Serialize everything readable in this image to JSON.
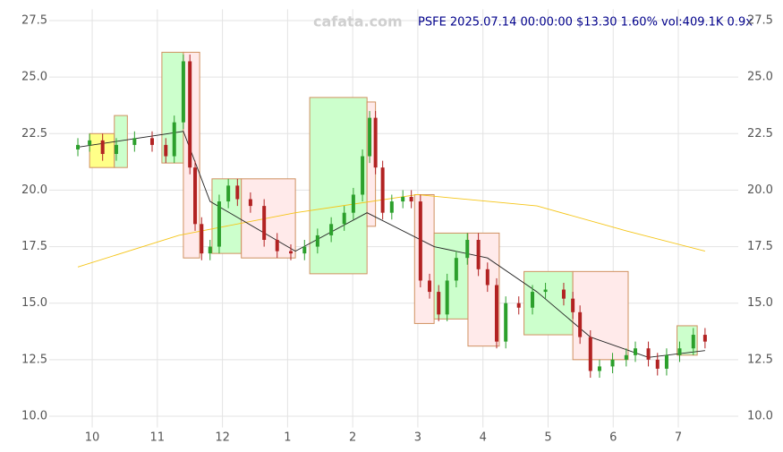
{
  "chart_data": {
    "type": "candlestick",
    "title": "PSFE 2025.07.14 00:00:00 $13.30 1.60% vol:409.1K 0.9x",
    "watermark": "cafata.com",
    "xlim": [
      -0.66,
      9.92
    ],
    "ylim": [
      9.5,
      28.0
    ],
    "grid": true,
    "xticks": [
      {
        "value": 0,
        "label": "10"
      },
      {
        "value": 1,
        "label": "11"
      },
      {
        "value": 2,
        "label": "12"
      },
      {
        "value": 3,
        "label": "1"
      },
      {
        "value": 4,
        "label": "2"
      },
      {
        "value": 5,
        "label": "3"
      },
      {
        "value": 6,
        "label": "4"
      },
      {
        "value": 7,
        "label": "5"
      },
      {
        "value": 8,
        "label": "6"
      },
      {
        "value": 9,
        "label": "7"
      }
    ],
    "yticks": [
      {
        "value": 10,
        "label": "10.0"
      },
      12.5,
      {
        "value": 15,
        "label": "15.0"
      },
      17.5,
      {
        "value": 20,
        "label": "20.0"
      },
      22.5,
      {
        "value": 25,
        "label": "25.0"
      },
      27.5
    ],
    "x": [
      -0.22,
      -0.04,
      0.16,
      0.37,
      0.65,
      0.92,
      1.13,
      1.26,
      1.4,
      1.5,
      1.58,
      1.68,
      1.81,
      1.95,
      2.09,
      2.23,
      2.43,
      2.64,
      2.84,
      3.05,
      3.26,
      3.46,
      3.67,
      3.87,
      4.01,
      4.15,
      4.26,
      4.35,
      4.46,
      4.6,
      4.77,
      4.9,
      5.04,
      5.18,
      5.32,
      5.45,
      5.59,
      5.76,
      5.93,
      6.07,
      6.21,
      6.35,
      6.55,
      6.76,
      6.96,
      7.24,
      7.38,
      7.49,
      7.65,
      7.79,
      7.99,
      8.2,
      8.34,
      8.54,
      8.68,
      8.82,
      9.02,
      9.23,
      9.41
    ],
    "open": [
      21.8,
      22.0,
      22.2,
      21.6,
      22.0,
      22.3,
      22.0,
      21.5,
      23.0,
      25.7,
      21.0,
      18.5,
      17.2,
      17.5,
      19.5,
      20.2,
      19.6,
      19.3,
      17.8,
      17.3,
      17.2,
      17.5,
      18.0,
      18.5,
      19.0,
      19.8,
      21.5,
      23.2,
      21.0,
      19.0,
      19.5,
      19.7,
      19.5,
      16.0,
      15.5,
      14.5,
      16.0,
      17.0,
      17.8,
      16.5,
      15.8,
      13.3,
      15.0,
      14.8,
      15.5,
      15.6,
      15.2,
      14.6,
      13.5,
      12.0,
      12.2,
      12.5,
      12.7,
      13.0,
      12.5,
      12.1,
      12.7,
      13.0,
      13.6
    ],
    "high": [
      22.3,
      22.5,
      22.5,
      22.3,
      22.6,
      22.6,
      22.3,
      23.3,
      26.0,
      26.0,
      21.3,
      18.8,
      17.8,
      19.8,
      20.5,
      20.5,
      19.9,
      19.6,
      18.1,
      17.6,
      17.8,
      18.3,
      18.8,
      19.3,
      20.1,
      21.8,
      23.5,
      23.5,
      21.3,
      19.8,
      20.0,
      20.0,
      19.8,
      16.3,
      15.8,
      16.3,
      17.3,
      18.1,
      18.1,
      16.8,
      16.1,
      15.3,
      15.3,
      15.8,
      15.9,
      15.9,
      15.5,
      14.9,
      13.8,
      12.5,
      12.8,
      13.0,
      13.3,
      13.3,
      12.8,
      13.0,
      13.3,
      13.9,
      13.9
    ],
    "low": [
      21.5,
      21.7,
      21.3,
      21.3,
      21.7,
      21.7,
      21.2,
      21.2,
      22.7,
      20.7,
      18.2,
      16.9,
      16.9,
      17.2,
      19.2,
      19.3,
      19.0,
      17.5,
      17.0,
      16.9,
      16.9,
      17.2,
      17.7,
      18.2,
      18.7,
      19.5,
      21.2,
      20.7,
      18.7,
      18.7,
      19.2,
      19.2,
      15.7,
      15.2,
      14.2,
      14.2,
      15.7,
      16.7,
      16.2,
      15.5,
      13.0,
      13.0,
      14.5,
      14.5,
      15.2,
      14.9,
      14.3,
      13.2,
      11.7,
      11.7,
      11.9,
      12.2,
      12.4,
      12.2,
      11.8,
      11.8,
      12.4,
      12.7,
      13.0
    ],
    "close": [
      22.0,
      22.2,
      21.6,
      22.0,
      22.3,
      22.0,
      21.5,
      23.0,
      25.7,
      21.0,
      18.5,
      17.2,
      17.5,
      19.5,
      20.2,
      19.6,
      19.3,
      17.8,
      17.3,
      17.2,
      17.5,
      18.0,
      18.5,
      19.0,
      19.8,
      21.5,
      23.2,
      21.0,
      19.0,
      19.5,
      19.7,
      19.5,
      16.0,
      15.5,
      14.5,
      16.0,
      17.0,
      17.8,
      16.5,
      15.8,
      13.3,
      15.0,
      14.8,
      15.5,
      15.6,
      15.2,
      14.6,
      13.5,
      12.0,
      12.2,
      12.5,
      12.7,
      13.0,
      12.5,
      12.1,
      12.7,
      13.0,
      13.6,
      13.3
    ],
    "up_color": "#2ca02c",
    "down_color": "#b22222",
    "lines": [
      {
        "color": "#f5c518",
        "x": [
          -0.22,
          1.33,
          3.12,
          4.99,
          6.83,
          8.2,
          9.41
        ],
        "values": [
          16.6,
          18.0,
          19.0,
          19.8,
          19.3,
          18.2,
          17.3
        ]
      },
      {
        "color": "#222222",
        "x": [
          -0.22,
          1.4,
          1.81,
          3.12,
          4.22,
          5.25,
          6.07,
          6.83,
          7.65,
          8.54,
          9.41
        ],
        "values": [
          21.9,
          22.6,
          19.5,
          17.3,
          19.0,
          17.5,
          17.0,
          15.5,
          13.5,
          12.6,
          12.9
        ]
      }
    ],
    "boxes": [
      {
        "color": "#ffff88",
        "x": [
          -0.04,
          0.34
        ],
        "y": [
          21.0,
          22.5
        ]
      },
      {
        "color": "#ccffcc",
        "x": [
          0.34,
          0.54
        ],
        "y": [
          21.0,
          23.3
        ]
      },
      {
        "color": "#ccffcc",
        "x": [
          1.07,
          1.4
        ],
        "y": [
          21.2,
          26.1
        ]
      },
      {
        "color": "#ffeaea",
        "x": [
          1.4,
          1.65
        ],
        "y": [
          17.0,
          26.1
        ]
      },
      {
        "color": "#ccffcc",
        "x": [
          1.84,
          2.29
        ],
        "y": [
          17.2,
          20.5
        ]
      },
      {
        "color": "#ffeaea",
        "x": [
          2.29,
          3.12
        ],
        "y": [
          17.0,
          20.5
        ]
      },
      {
        "color": "#ccffcc",
        "x": [
          3.34,
          4.22
        ],
        "y": [
          16.3,
          24.1
        ]
      },
      {
        "color": "#ffeaea",
        "x": [
          4.22,
          4.35
        ],
        "y": [
          18.4,
          23.9
        ]
      },
      {
        "color": "#ffeaea",
        "x": [
          4.95,
          5.25
        ],
        "y": [
          14.1,
          19.8
        ]
      },
      {
        "color": "#ccffcc",
        "x": [
          5.25,
          5.77
        ],
        "y": [
          14.3,
          18.1
        ]
      },
      {
        "color": "#ffeaea",
        "x": [
          5.77,
          6.25
        ],
        "y": [
          13.1,
          18.1
        ]
      },
      {
        "color": "#ccffcc",
        "x": [
          6.63,
          7.38
        ],
        "y": [
          13.6,
          16.4
        ]
      },
      {
        "color": "#ffeaea",
        "x": [
          7.38,
          8.23
        ],
        "y": [
          12.5,
          16.4
        ]
      },
      {
        "color": "#ccffcc",
        "x": [
          8.98,
          9.29
        ],
        "y": [
          12.7,
          14.0
        ]
      }
    ]
  }
}
